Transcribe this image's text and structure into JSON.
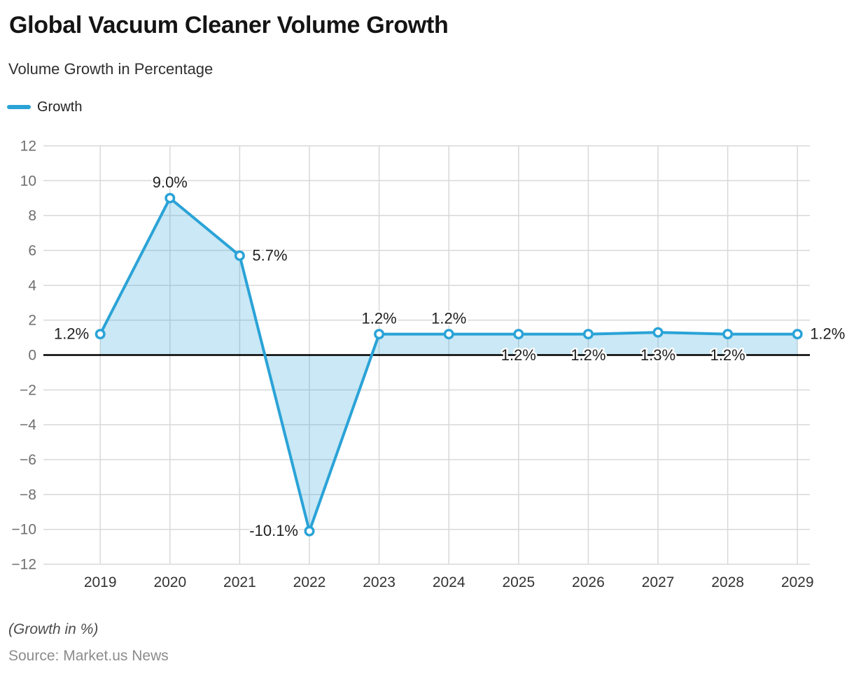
{
  "header": {
    "title": "Global Vacuum Cleaner Volume Growth",
    "subtitle": "Volume Growth in Percentage"
  },
  "legend": {
    "label": "Growth"
  },
  "footer": {
    "note": "(Growth in %)",
    "source": "Source: Market.us News"
  },
  "colors": {
    "line": "#2aa3d7",
    "area_fill": "rgba(42,163,215,0.25)",
    "marker_fill": "#ffffff",
    "grid": "#d8d8d8",
    "zero_line": "#000000",
    "data_label": "#212121",
    "label_halo": "#ffffff",
    "x_tick": "#333333",
    "y_tick": "#6f6f6f"
  },
  "chart_data": {
    "type": "area",
    "title": "Global Vacuum Cleaner Volume Growth",
    "subtitle": "Volume Growth in Percentage",
    "categories": [
      "2019",
      "2020",
      "2021",
      "2022",
      "2023",
      "2024",
      "2025",
      "2026",
      "2027",
      "2028",
      "2029"
    ],
    "series": [
      {
        "name": "Growth",
        "values": [
          1.2,
          9.0,
          5.7,
          -10.1,
          1.2,
          1.2,
          1.2,
          1.2,
          1.3,
          1.2,
          1.2
        ]
      }
    ],
    "point_labels": [
      "1.2%",
      "9.0%",
      "5.7%",
      "-10.1%",
      "1.2%",
      "1.2%",
      "1.2%",
      "1.2%",
      "1.3%",
      "1.2%",
      "1.2%"
    ],
    "label_placement": [
      "left",
      "above",
      "right",
      "left",
      "above",
      "above",
      "zero",
      "zero",
      "zero",
      "zero",
      "right"
    ],
    "xlabel": "",
    "ylabel": "",
    "ylim": [
      -12,
      12
    ],
    "ytick_step": 2,
    "grid": true,
    "legend_position": "top-left",
    "zero_baseline": true
  }
}
